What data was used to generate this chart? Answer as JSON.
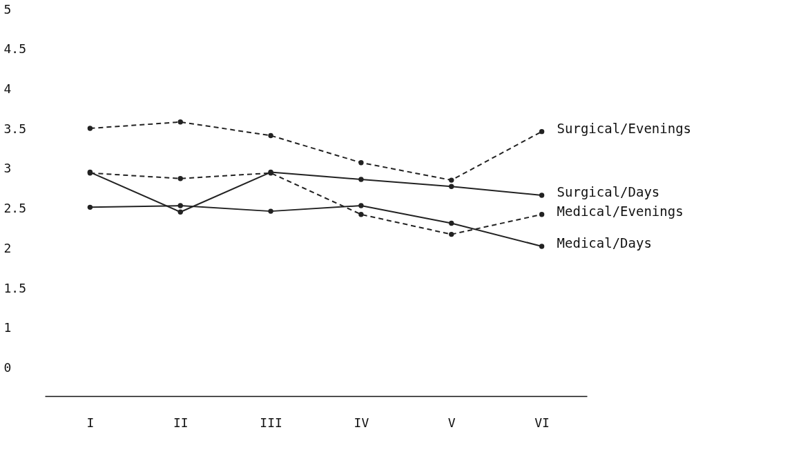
{
  "chart_data": {
    "type": "line",
    "categories": [
      "I",
      "II",
      "III",
      "IV",
      "V",
      "VI"
    ],
    "ylim": [
      0.15,
      5
    ],
    "yticks": [
      {
        "value": 0.5,
        "label": "0"
      },
      1,
      1.5,
      2,
      2.5,
      3,
      3.5,
      4,
      4.5,
      5
    ],
    "grid": false,
    "marker": "circle",
    "series": [
      {
        "name": "Surgical/Evenings",
        "color": "#222222",
        "line_style": "dashed",
        "values": [
          3.51,
          3.59,
          3.42,
          3.08,
          2.86,
          3.47
        ]
      },
      {
        "name": "Surgical/Days",
        "color": "#222222",
        "line_style": "solid",
        "values": [
          2.96,
          2.46,
          2.96,
          2.87,
          2.78,
          2.67
        ]
      },
      {
        "name": "Medical/Evenings",
        "color": "#222222",
        "line_style": "dashed",
        "values": [
          2.95,
          2.88,
          2.95,
          2.43,
          2.18,
          2.43
        ]
      },
      {
        "name": "Medical/Days",
        "color": "#222222",
        "line_style": "solid",
        "values": [
          2.52,
          2.54,
          2.47,
          2.54,
          2.32,
          2.03
        ]
      }
    ]
  }
}
